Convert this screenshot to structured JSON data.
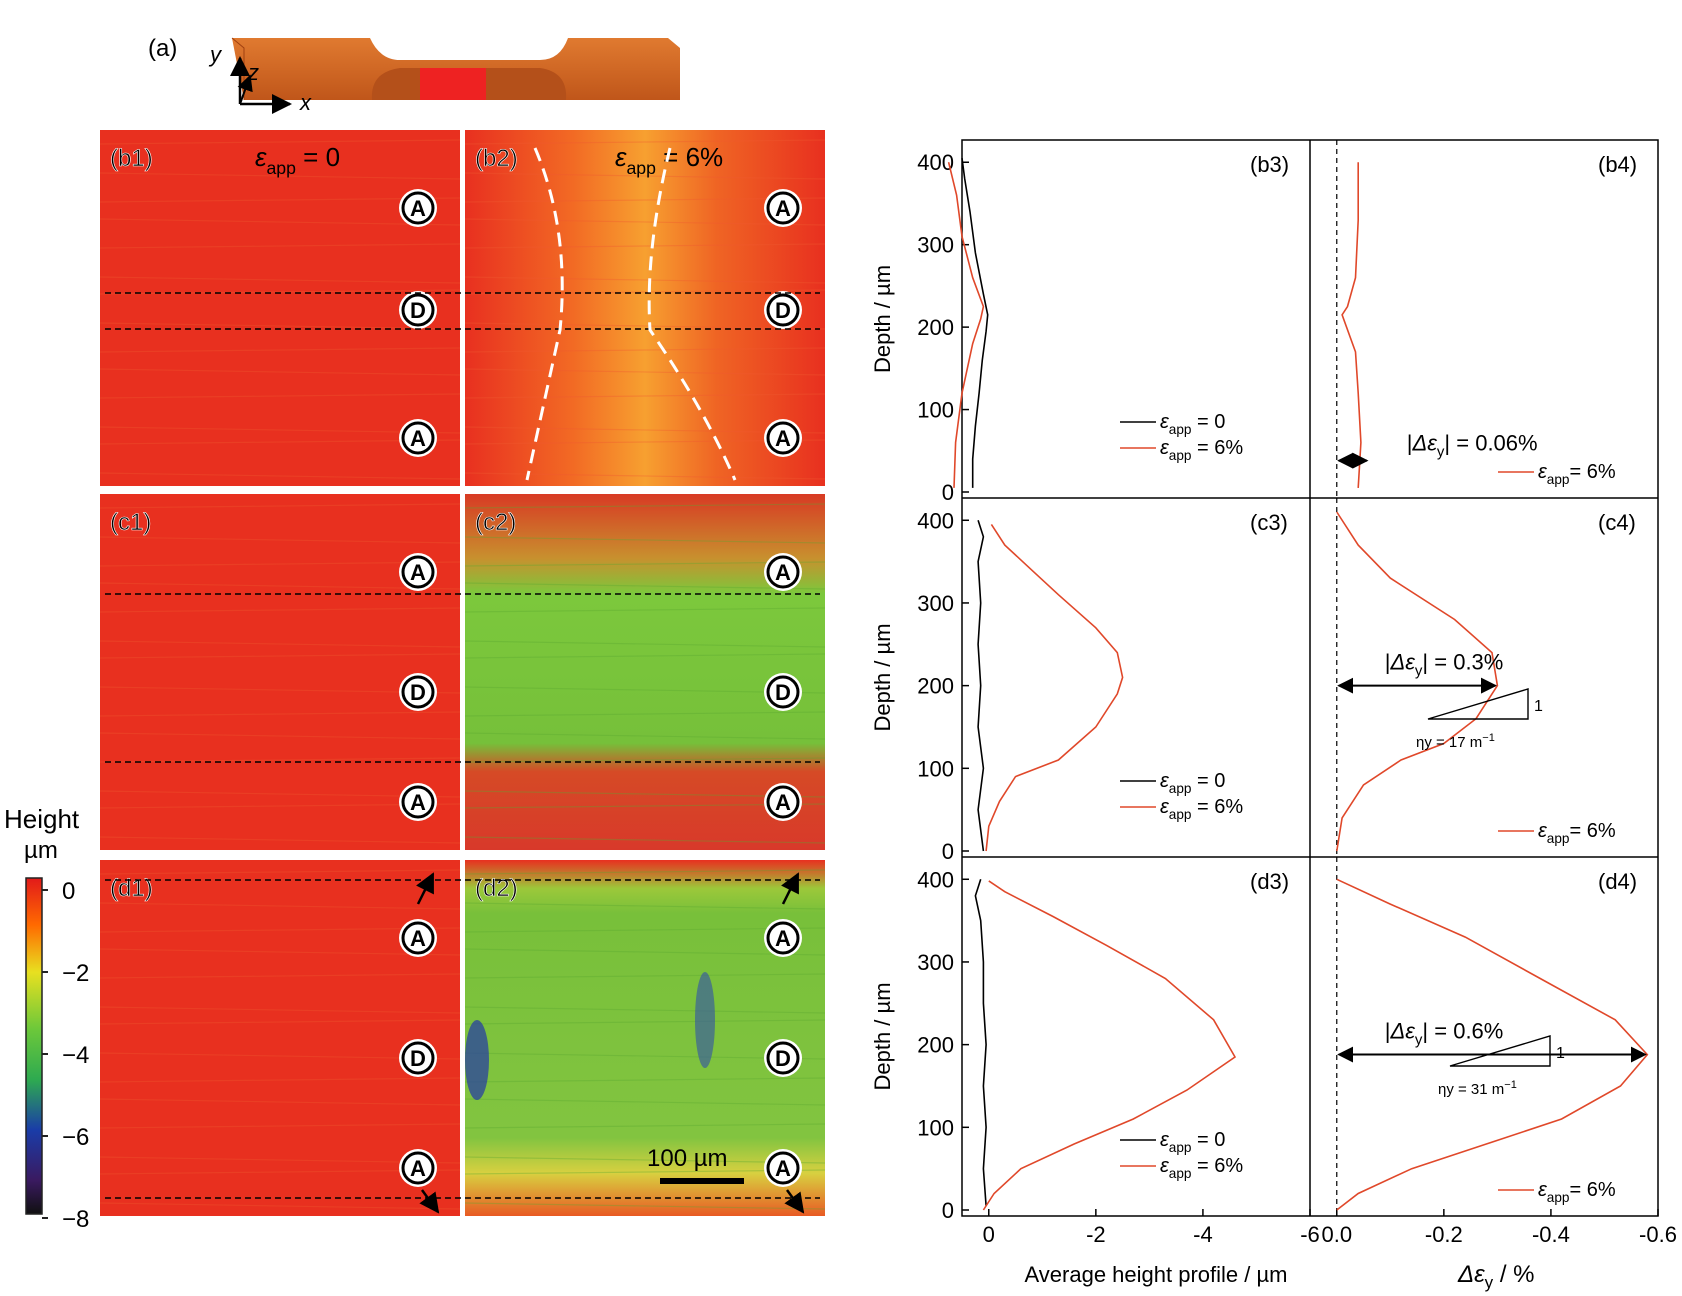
{
  "specimen": {
    "label": "(a)",
    "axes": [
      "y",
      "z",
      "x"
    ]
  },
  "height_scale": {
    "title": [
      "Height",
      "µm"
    ],
    "ticks": [
      "0",
      "−2",
      "−4",
      "−6",
      "−8"
    ]
  },
  "maps": [
    {
      "label": "(b1)",
      "annotation": "0",
      "markers": [
        "A",
        "D",
        "A"
      ]
    },
    {
      "label": "(b2)",
      "annotation": "6%",
      "markers": [
        "A",
        "D",
        "A"
      ]
    },
    {
      "label": "(c1)",
      "markers": [
        "A",
        "D",
        "A"
      ]
    },
    {
      "label": "(c2)",
      "markers": [
        "A",
        "D",
        "A"
      ]
    },
    {
      "label": "(d1)",
      "markers": [
        "A",
        "D",
        "A"
      ]
    },
    {
      "label": "(d2)",
      "markers": [
        "A",
        "D",
        "A"
      ],
      "scalebar": "100 µm"
    }
  ],
  "legend": {
    "eps_symbol": "ε",
    "eps_sub": "app",
    "zero": " = 0",
    "six": " = 6%",
    "six_tight": "= 6%",
    "black": "#000000",
    "red": "#e0482a"
  },
  "chart_data": [
    {
      "type": "line",
      "panel": "(b3)",
      "ylabel": "Depth / µm",
      "ylim": [
        0,
        410
      ],
      "xlim": [
        0.5,
        -6
      ],
      "yticks": [
        "0",
        "100",
        "200",
        "300",
        "400"
      ],
      "xticks": [],
      "series": [
        {
          "name": "εapp = 0",
          "color": "#000000",
          "points": [
            [
              0.3,
              5
            ],
            [
              0.3,
              40
            ],
            [
              0.25,
              80
            ],
            [
              0.18,
              120
            ],
            [
              0.12,
              160
            ],
            [
              0.05,
              195
            ],
            [
              0.02,
              215
            ],
            [
              0.1,
              240
            ],
            [
              0.25,
              290
            ],
            [
              0.35,
              340
            ],
            [
              0.45,
              380
            ],
            [
              0.5,
              405
            ]
          ]
        },
        {
          "name": "εapp = 6%",
          "color": "#e0482a",
          "points": [
            [
              0.65,
              5
            ],
            [
              0.62,
              60
            ],
            [
              0.5,
              120
            ],
            [
              0.3,
              180
            ],
            [
              0.15,
              210
            ],
            [
              0.1,
              225
            ],
            [
              0.3,
              260
            ],
            [
              0.5,
              310
            ],
            [
              0.6,
              360
            ],
            [
              0.75,
              400
            ]
          ]
        }
      ]
    },
    {
      "type": "line",
      "panel": "(b4)",
      "ylim": [
        0,
        410
      ],
      "xlim": [
        0.05,
        -0.6
      ],
      "yticks": [],
      "xticks": [],
      "annotation": {
        "text": "| = 0.06%",
        "value": -0.06,
        "depth": 38
      },
      "series": [
        {
          "name": "εapp= 6%",
          "color": "#e0482a",
          "points": [
            [
              -0.04,
              5
            ],
            [
              -0.045,
              60
            ],
            [
              -0.04,
              120
            ],
            [
              -0.035,
              170
            ],
            [
              -0.01,
              215
            ],
            [
              -0.02,
              225
            ],
            [
              -0.035,
              260
            ],
            [
              -0.04,
              330
            ],
            [
              -0.04,
              400
            ]
          ]
        }
      ]
    },
    {
      "type": "line",
      "panel": "(c3)",
      "ylabel": "Depth / µm",
      "ylim": [
        0,
        410
      ],
      "xlim": [
        0.5,
        -6
      ],
      "yticks": [
        "0",
        "100",
        "200",
        "300",
        "400"
      ],
      "xticks": [],
      "series": [
        {
          "name": "εapp = 0",
          "color": "#000000",
          "points": [
            [
              0.1,
              0
            ],
            [
              0.2,
              50
            ],
            [
              0.1,
              100
            ],
            [
              0.2,
              150
            ],
            [
              0.15,
              200
            ],
            [
              0.2,
              250
            ],
            [
              0.15,
              300
            ],
            [
              0.2,
              350
            ],
            [
              0.1,
              380
            ],
            [
              0.2,
              400
            ]
          ]
        },
        {
          "name": "εapp = 6%",
          "color": "#e0482a",
          "points": [
            [
              0.05,
              0
            ],
            [
              0.0,
              30
            ],
            [
              -0.2,
              60
            ],
            [
              -0.5,
              90
            ],
            [
              -1.3,
              110
            ],
            [
              -2.0,
              150
            ],
            [
              -2.4,
              190
            ],
            [
              -2.5,
              210
            ],
            [
              -2.4,
              240
            ],
            [
              -2.0,
              270
            ],
            [
              -1.3,
              310
            ],
            [
              -0.8,
              340
            ],
            [
              -0.3,
              370
            ],
            [
              -0.05,
              395
            ]
          ]
        }
      ]
    },
    {
      "type": "line",
      "panel": "(c4)",
      "ylim": [
        0,
        410
      ],
      "xlim": [
        0.05,
        -0.6
      ],
      "yticks": [],
      "xticks": [],
      "annotation": {
        "text": "| = 0.3%",
        "value": -0.3,
        "depth": 200
      },
      "slope": {
        "label": "ηy = 17 m",
        "sup": "−1",
        "side": "1"
      },
      "series": [
        {
          "name": "εapp= 6%",
          "color": "#e0482a",
          "points": [
            [
              0.0,
              0
            ],
            [
              -0.01,
              40
            ],
            [
              -0.05,
              80
            ],
            [
              -0.12,
              110
            ],
            [
              -0.2,
              130
            ],
            [
              -0.26,
              160
            ],
            [
              -0.3,
              200
            ],
            [
              -0.29,
              240
            ],
            [
              -0.22,
              280
            ],
            [
              -0.1,
              330
            ],
            [
              -0.04,
              370
            ],
            [
              0.0,
              410
            ]
          ]
        }
      ]
    },
    {
      "type": "line",
      "panel": "(d3)",
      "ylabel": "Depth / µm",
      "ylim": [
        0,
        410
      ],
      "xlim": [
        0.5,
        -6
      ],
      "yticks": [
        "0",
        "100",
        "200",
        "300",
        "400"
      ],
      "xlabel": "Average height profile / µm",
      "xticks": [
        "0",
        "-2",
        "-4",
        "-6"
      ],
      "series": [
        {
          "name": "εapp = 0",
          "color": "#000000",
          "points": [
            [
              0.05,
              5
            ],
            [
              0.1,
              50
            ],
            [
              0.05,
              100
            ],
            [
              0.1,
              150
            ],
            [
              0.05,
              200
            ],
            [
              0.1,
              250
            ],
            [
              0.1,
              300
            ],
            [
              0.15,
              350
            ],
            [
              0.25,
              380
            ],
            [
              0.15,
              400
            ]
          ]
        },
        {
          "name": "εapp = 6%",
          "color": "#e0482a",
          "points": [
            [
              0.1,
              0
            ],
            [
              -0.1,
              20
            ],
            [
              -0.6,
              50
            ],
            [
              -1.6,
              80
            ],
            [
              -2.7,
              110
            ],
            [
              -3.7,
              145
            ],
            [
              -4.6,
              185
            ],
            [
              -4.2,
              230
            ],
            [
              -3.3,
              280
            ],
            [
              -2.2,
              320
            ],
            [
              -1.2,
              355
            ],
            [
              -0.3,
              385
            ],
            [
              0.0,
              398
            ]
          ]
        }
      ]
    },
    {
      "type": "line",
      "panel": "(d4)",
      "ylim": [
        0,
        410
      ],
      "xlim": [
        0.05,
        -0.6
      ],
      "yticks": [],
      "xlabel_sym": "Δε",
      "xlabel_sub": "y",
      "xlabel_unit": " / %",
      "xticks": [
        "0.0",
        "-0.2",
        "-0.4",
        "-0.6"
      ],
      "annotation": {
        "text": "| = 0.6%",
        "value": -0.58,
        "depth": 188
      },
      "slope": {
        "label": "ηy = 31 m",
        "sup": "−1",
        "side": "1"
      },
      "series": [
        {
          "name": "εapp= 6%",
          "color": "#e0482a",
          "points": [
            [
              0.0,
              0
            ],
            [
              -0.04,
              20
            ],
            [
              -0.14,
              50
            ],
            [
              -0.28,
              80
            ],
            [
              -0.42,
              110
            ],
            [
              -0.53,
              150
            ],
            [
              -0.58,
              188
            ],
            [
              -0.52,
              230
            ],
            [
              -0.38,
              280
            ],
            [
              -0.24,
              330
            ],
            [
              -0.1,
              370
            ],
            [
              0.0,
              400
            ]
          ]
        }
      ]
    }
  ]
}
